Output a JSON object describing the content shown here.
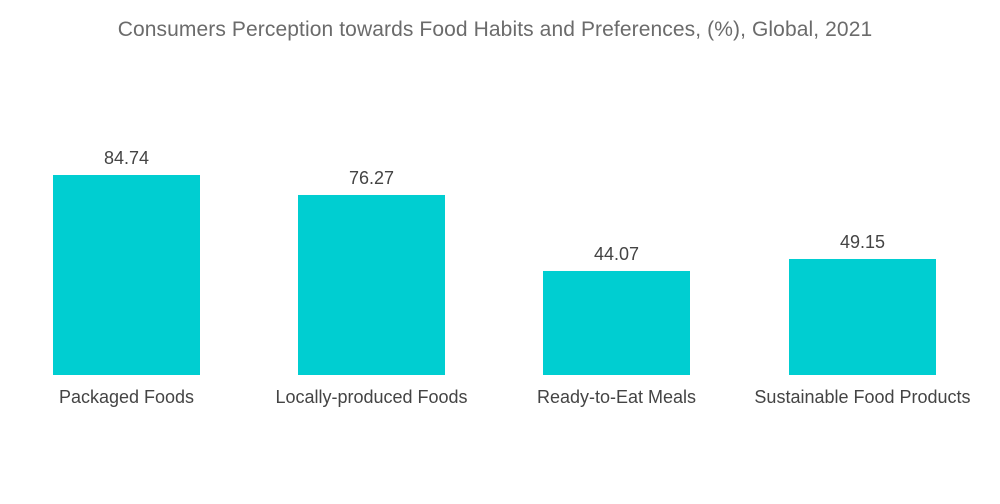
{
  "chart_data": {
    "type": "bar",
    "title": "Consumers Perception towards Food Habits and Preferences, (%), Global, 2021",
    "categories": [
      "Packaged Foods",
      "Locally-produced Foods",
      "Ready-to-Eat Meals",
      "Sustainable Food Products"
    ],
    "values": [
      84.74,
      76.27,
      44.07,
      49.15
    ],
    "value_labels": [
      "84.74",
      "76.27",
      "44.07",
      "49.15"
    ],
    "xlabel": "",
    "ylabel": "",
    "ylim": [
      0,
      100
    ],
    "grid": false,
    "legend": "none",
    "bar_color": "#00CED1"
  }
}
